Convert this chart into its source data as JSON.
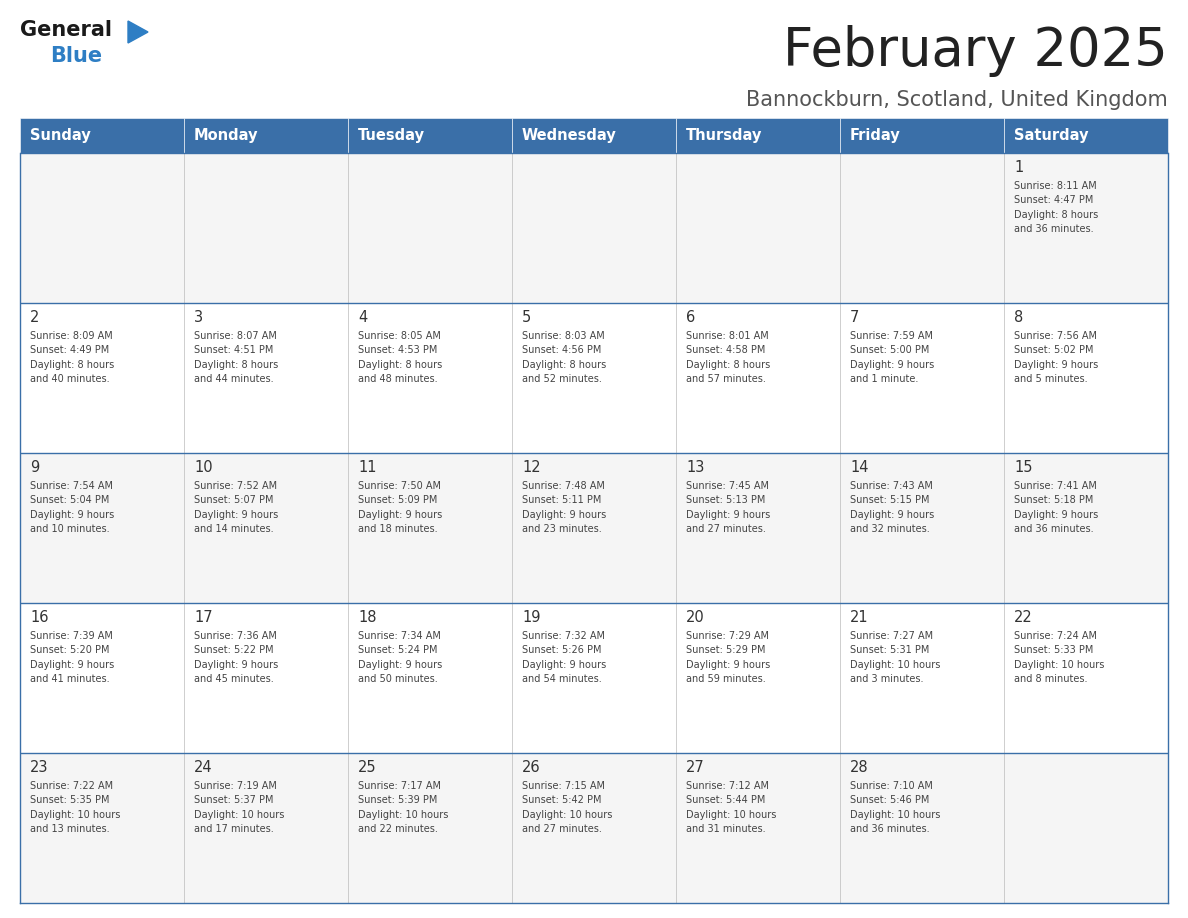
{
  "title": "February 2025",
  "subtitle": "Bannockburn, Scotland, United Kingdom",
  "header_bg_color": "#3a6fa8",
  "header_text_color": "#FFFFFF",
  "cell_bg_color_odd": "#f5f5f5",
  "cell_bg_color_even": "#FFFFFF",
  "day_number_color": "#333333",
  "cell_text_color": "#444444",
  "border_color": "#3a6fa8",
  "divider_color": "#bbbbbb",
  "days_of_week": [
    "Sunday",
    "Monday",
    "Tuesday",
    "Wednesday",
    "Thursday",
    "Friday",
    "Saturday"
  ],
  "calendar_data": [
    [
      {
        "day": "",
        "info": ""
      },
      {
        "day": "",
        "info": ""
      },
      {
        "day": "",
        "info": ""
      },
      {
        "day": "",
        "info": ""
      },
      {
        "day": "",
        "info": ""
      },
      {
        "day": "",
        "info": ""
      },
      {
        "day": "1",
        "info": "Sunrise: 8:11 AM\nSunset: 4:47 PM\nDaylight: 8 hours\nand 36 minutes."
      }
    ],
    [
      {
        "day": "2",
        "info": "Sunrise: 8:09 AM\nSunset: 4:49 PM\nDaylight: 8 hours\nand 40 minutes."
      },
      {
        "day": "3",
        "info": "Sunrise: 8:07 AM\nSunset: 4:51 PM\nDaylight: 8 hours\nand 44 minutes."
      },
      {
        "day": "4",
        "info": "Sunrise: 8:05 AM\nSunset: 4:53 PM\nDaylight: 8 hours\nand 48 minutes."
      },
      {
        "day": "5",
        "info": "Sunrise: 8:03 AM\nSunset: 4:56 PM\nDaylight: 8 hours\nand 52 minutes."
      },
      {
        "day": "6",
        "info": "Sunrise: 8:01 AM\nSunset: 4:58 PM\nDaylight: 8 hours\nand 57 minutes."
      },
      {
        "day": "7",
        "info": "Sunrise: 7:59 AM\nSunset: 5:00 PM\nDaylight: 9 hours\nand 1 minute."
      },
      {
        "day": "8",
        "info": "Sunrise: 7:56 AM\nSunset: 5:02 PM\nDaylight: 9 hours\nand 5 minutes."
      }
    ],
    [
      {
        "day": "9",
        "info": "Sunrise: 7:54 AM\nSunset: 5:04 PM\nDaylight: 9 hours\nand 10 minutes."
      },
      {
        "day": "10",
        "info": "Sunrise: 7:52 AM\nSunset: 5:07 PM\nDaylight: 9 hours\nand 14 minutes."
      },
      {
        "day": "11",
        "info": "Sunrise: 7:50 AM\nSunset: 5:09 PM\nDaylight: 9 hours\nand 18 minutes."
      },
      {
        "day": "12",
        "info": "Sunrise: 7:48 AM\nSunset: 5:11 PM\nDaylight: 9 hours\nand 23 minutes."
      },
      {
        "day": "13",
        "info": "Sunrise: 7:45 AM\nSunset: 5:13 PM\nDaylight: 9 hours\nand 27 minutes."
      },
      {
        "day": "14",
        "info": "Sunrise: 7:43 AM\nSunset: 5:15 PM\nDaylight: 9 hours\nand 32 minutes."
      },
      {
        "day": "15",
        "info": "Sunrise: 7:41 AM\nSunset: 5:18 PM\nDaylight: 9 hours\nand 36 minutes."
      }
    ],
    [
      {
        "day": "16",
        "info": "Sunrise: 7:39 AM\nSunset: 5:20 PM\nDaylight: 9 hours\nand 41 minutes."
      },
      {
        "day": "17",
        "info": "Sunrise: 7:36 AM\nSunset: 5:22 PM\nDaylight: 9 hours\nand 45 minutes."
      },
      {
        "day": "18",
        "info": "Sunrise: 7:34 AM\nSunset: 5:24 PM\nDaylight: 9 hours\nand 50 minutes."
      },
      {
        "day": "19",
        "info": "Sunrise: 7:32 AM\nSunset: 5:26 PM\nDaylight: 9 hours\nand 54 minutes."
      },
      {
        "day": "20",
        "info": "Sunrise: 7:29 AM\nSunset: 5:29 PM\nDaylight: 9 hours\nand 59 minutes."
      },
      {
        "day": "21",
        "info": "Sunrise: 7:27 AM\nSunset: 5:31 PM\nDaylight: 10 hours\nand 3 minutes."
      },
      {
        "day": "22",
        "info": "Sunrise: 7:24 AM\nSunset: 5:33 PM\nDaylight: 10 hours\nand 8 minutes."
      }
    ],
    [
      {
        "day": "23",
        "info": "Sunrise: 7:22 AM\nSunset: 5:35 PM\nDaylight: 10 hours\nand 13 minutes."
      },
      {
        "day": "24",
        "info": "Sunrise: 7:19 AM\nSunset: 5:37 PM\nDaylight: 10 hours\nand 17 minutes."
      },
      {
        "day": "25",
        "info": "Sunrise: 7:17 AM\nSunset: 5:39 PM\nDaylight: 10 hours\nand 22 minutes."
      },
      {
        "day": "26",
        "info": "Sunrise: 7:15 AM\nSunset: 5:42 PM\nDaylight: 10 hours\nand 27 minutes."
      },
      {
        "day": "27",
        "info": "Sunrise: 7:12 AM\nSunset: 5:44 PM\nDaylight: 10 hours\nand 31 minutes."
      },
      {
        "day": "28",
        "info": "Sunrise: 7:10 AM\nSunset: 5:46 PM\nDaylight: 10 hours\nand 36 minutes."
      },
      {
        "day": "",
        "info": ""
      }
    ]
  ],
  "logo_general_color": "#1a1a1a",
  "logo_blue_color": "#2e7ec4",
  "title_color": "#222222",
  "subtitle_color": "#555555",
  "fig_width": 11.88,
  "fig_height": 9.18,
  "dpi": 100
}
